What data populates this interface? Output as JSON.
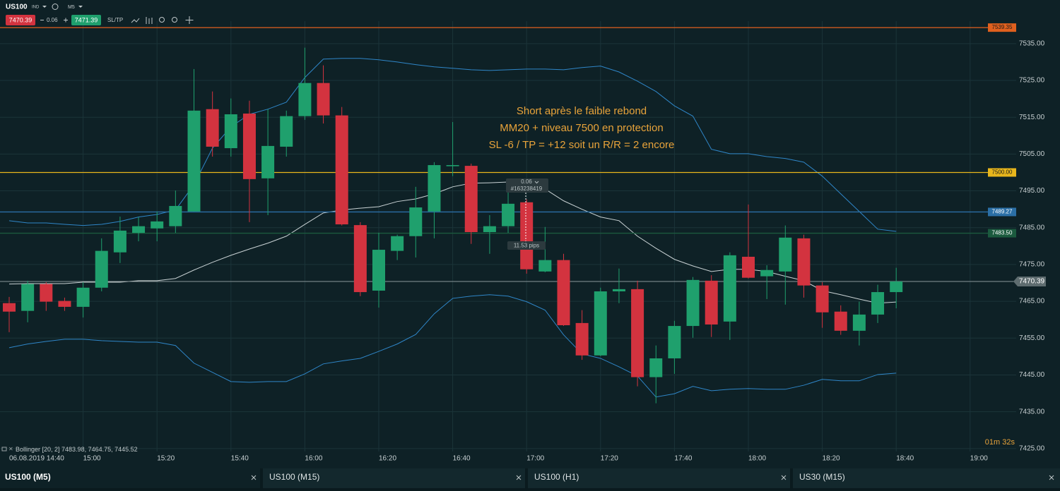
{
  "toolbar": {
    "symbol": "US100",
    "symbol_type": "IND",
    "timeframe": "M5",
    "sell_price": 7470.39,
    "lot": 0.06,
    "buy_price": 7471.39,
    "sltp": "SL/TP"
  },
  "tabs": [
    "US100 (M5)",
    "US100 (M15)",
    "US100 (H1)",
    "US30 (M15)"
  ],
  "chart_data": {
    "type": "candlestick",
    "categories": [
      "06.08.2019 14:40",
      null,
      null,
      null,
      "15:00",
      null,
      null,
      null,
      "15:20",
      null,
      null,
      null,
      "15:40",
      null,
      null,
      null,
      "16:00",
      null,
      null,
      null,
      "16:20",
      null,
      null,
      null,
      "16:40",
      null,
      null,
      null,
      "17:00",
      null,
      null,
      null,
      "17:20",
      null,
      null,
      null,
      "17:40",
      null,
      null,
      null,
      "18:00",
      null,
      null,
      null,
      "18:20",
      null,
      null,
      null,
      "18:40",
      null,
      null,
      null,
      "19:00"
    ],
    "open": [
      7464.5,
      7462.4,
      7469.7,
      7465.1,
      7463.5,
      7468.7,
      7478.3,
      7483.6,
      7484.8,
      7485.4,
      7489.4,
      7517.2,
      7506.6,
      7516.0,
      7498.4,
      7507.0,
      7515.3,
      7524.3,
      7515.5,
      7485.7,
      7467.9,
      7478.7,
      7482.7,
      7489.4,
      7501.7,
      7501.8,
      7483.8,
      7485.4,
      7491.9,
      7473.1,
      7476.2,
      7459.1,
      7450.3,
      7467.7,
      7468.3,
      7444.4,
      7449.5,
      7458.3,
      7470.6,
      7459.5,
      7477.1,
      7471.8,
      7473.1,
      7482.1,
      7469.3,
      7462.2,
      7457.0,
      7461.4,
      7467.5,
      null,
      null,
      null,
      null
    ],
    "high": [
      7466.2,
      7470.6,
      7470.2,
      7466.0,
      7470.2,
      7482.1,
      7488.0,
      7487.9,
      7489.4,
      7495.1,
      7528.1,
      7522.0,
      7520.1,
      7519.5,
      7517.2,
      7516.8,
      7533.9,
      7529.1,
      7517.8,
      7486.5,
      7483.6,
      7483.1,
      7496.1,
      7502.8,
      7513.7,
      7502.4,
      7488.4,
      7495.1,
      7492.7,
      7485.2,
      7477.9,
      7462.6,
      7468.7,
      7473.9,
      7470.6,
      7453.0,
      7459.7,
      7471.6,
      7472.1,
      7478.3,
      7491.3,
      7474.8,
      7485.6,
      7483.1,
      7470.2,
      7463.9,
      7464.9,
      7469.5,
      7474.1,
      null,
      null,
      null,
      null
    ],
    "low": [
      7456.6,
      7459.3,
      7462.4,
      7462.4,
      7460.6,
      7467.7,
      7475.4,
      7481.3,
      7481.3,
      7483.6,
      7489.4,
      7504.3,
      7504.3,
      7486.5,
      7488.4,
      7504.3,
      7514.3,
      7513.3,
      7485.6,
      7466.4,
      7463.3,
      7476.2,
      7476.9,
      7482.1,
      7499.0,
      7480.6,
      7477.9,
      7483.6,
      7472.5,
      7472.9,
      7458.3,
      7449.1,
      7450.1,
      7464.5,
      7441.9,
      7437.3,
      7445.3,
      7455.1,
      7455.3,
      7454.5,
      7471.2,
      7465.6,
      7464.1,
      7466.0,
      7457.8,
      7455.9,
      7453.0,
      7459.1,
      7463.1,
      null,
      null,
      null,
      null
    ],
    "close": [
      7462.2,
      7469.7,
      7464.9,
      7463.5,
      7468.7,
      7478.7,
      7484.2,
      7485.4,
      7486.7,
      7490.9,
      7516.8,
      7507.0,
      7515.8,
      7498.2,
      7507.2,
      7515.3,
      7524.3,
      7515.5,
      7485.9,
      7467.5,
      7479.0,
      7482.7,
      7490.5,
      7502.0,
      7502.0,
      7483.8,
      7485.4,
      7491.5,
      7473.7,
      7476.2,
      7458.5,
      7450.3,
      7467.7,
      7468.3,
      7444.4,
      7449.5,
      7458.3,
      7470.8,
      7458.7,
      7477.5,
      7471.4,
      7473.5,
      7482.3,
      7469.3,
      7462.0,
      7457.0,
      7461.4,
      7467.5,
      7470.39,
      null,
      null,
      null,
      null
    ],
    "up_color": "#1fa06d",
    "down_color": "#d3333f",
    "bollinger": {
      "label": "Bollinger [20, 2] 7483.98, 7464.75, 7445.52",
      "color": "#2f86c8",
      "middle_color": "#c9d2d4",
      "upper": [
        7486.9,
        7486.3,
        7486.3,
        7485.9,
        7485.6,
        7485.9,
        7486.7,
        7487.9,
        7488.6,
        7489.8,
        7496.7,
        7506.6,
        7512.4,
        7515.8,
        7517.2,
        7519.1,
        7525.8,
        7530.8,
        7531.0,
        7531.0,
        7530.6,
        7530.0,
        7529.3,
        7528.7,
        7528.3,
        7527.9,
        7527.7,
        7527.9,
        7528.1,
        7528.1,
        7527.9,
        7528.5,
        7528.9,
        7527.3,
        7524.8,
        7522.0,
        7518.1,
        7515.3,
        7506.3,
        7505.1,
        7505.1,
        7504.3,
        7503.8,
        7502.8,
        7499.0,
        7494.2,
        7489.4,
        7484.6,
        7484.0,
        null,
        null,
        null,
        null
      ],
      "middle": [
        7469.7,
        7469.8,
        7469.8,
        7469.8,
        7470.2,
        7470.2,
        7470.2,
        7470.6,
        7470.6,
        7471.2,
        7473.5,
        7475.6,
        7477.5,
        7479.2,
        7480.8,
        7482.7,
        7485.9,
        7489.0,
        7489.8,
        7490.3,
        7490.7,
        7492.1,
        7492.8,
        7494.2,
        7496.1,
        7497.1,
        7497.2,
        7497.4,
        7497.4,
        7495.5,
        7492.3,
        7490.0,
        7487.9,
        7486.9,
        7482.7,
        7479.4,
        7476.4,
        7474.6,
        7473.1,
        7473.7,
        7473.7,
        7473.1,
        7471.8,
        7470.6,
        7467.9,
        7466.8,
        7465.6,
        7464.5,
        7464.8,
        null,
        null,
        null,
        null
      ],
      "lower": [
        7452.4,
        7453.4,
        7454.1,
        7454.7,
        7454.7,
        7454.3,
        7454.1,
        7453.9,
        7453.9,
        7453.0,
        7448.2,
        7445.7,
        7443.2,
        7443.0,
        7443.2,
        7443.2,
        7445.3,
        7448.0,
        7448.8,
        7449.5,
        7451.4,
        7453.4,
        7456.0,
        7461.6,
        7465.8,
        7466.4,
        7466.8,
        7466.4,
        7464.9,
        7462.6,
        7455.9,
        7450.7,
        7449.5,
        7447.2,
        7444.7,
        7439.0,
        7439.9,
        7441.9,
        7440.7,
        7441.1,
        7441.3,
        7441.1,
        7441.1,
        7442.2,
        7443.8,
        7443.4,
        7443.4,
        7445.1,
        7445.5,
        null,
        null,
        null,
        null
      ]
    },
    "levels": [
      {
        "value": 7539.35,
        "color": "#e0601e",
        "text_color": "#1a1a1a"
      },
      {
        "value": 7500,
        "label": "7500.00",
        "color": "#e8b61c",
        "text_color": "#1a1a1a"
      },
      {
        "value": 7489.27,
        "color": "#2b6fa6",
        "text_color": "#ffffff"
      },
      {
        "value": 7483.5,
        "label": "7483.50",
        "color": "#1b5a3e",
        "text_color": "#ffffff"
      }
    ],
    "last_price": 7470.39,
    "ylim": [
      7424.2,
      7541.1
    ],
    "yticks": [
      {
        "value": 7425,
        "label": "7425.00"
      },
      {
        "value": 7435,
        "label": "7435.00"
      },
      {
        "value": 7445,
        "label": "7445.00"
      },
      {
        "value": 7455,
        "label": "7455.00"
      },
      {
        "value": 7465,
        "label": "7465.00"
      },
      {
        "value": 7475,
        "label": "7475.00"
      },
      {
        "value": 7485,
        "label": "7485.00"
      },
      {
        "value": 7495,
        "label": "7495.00"
      },
      {
        "value": 7505,
        "label": "7505.00"
      },
      {
        "value": 7515,
        "label": "7515.00"
      },
      {
        "value": 7525,
        "label": "7525.00"
      },
      {
        "value": 7535,
        "label": "7535.00"
      }
    ],
    "grid": true,
    "annotation": [
      "Short après le faible rebond",
      "MM20 + niveau 7500 en protection",
      "SL -6 / TP = +12 soit un R/R = 2 encore"
    ],
    "trade": {
      "lot": 0.06,
      "ticket": "#163238419",
      "pips": "11.53 pips"
    },
    "countdown": "01m 32s"
  }
}
